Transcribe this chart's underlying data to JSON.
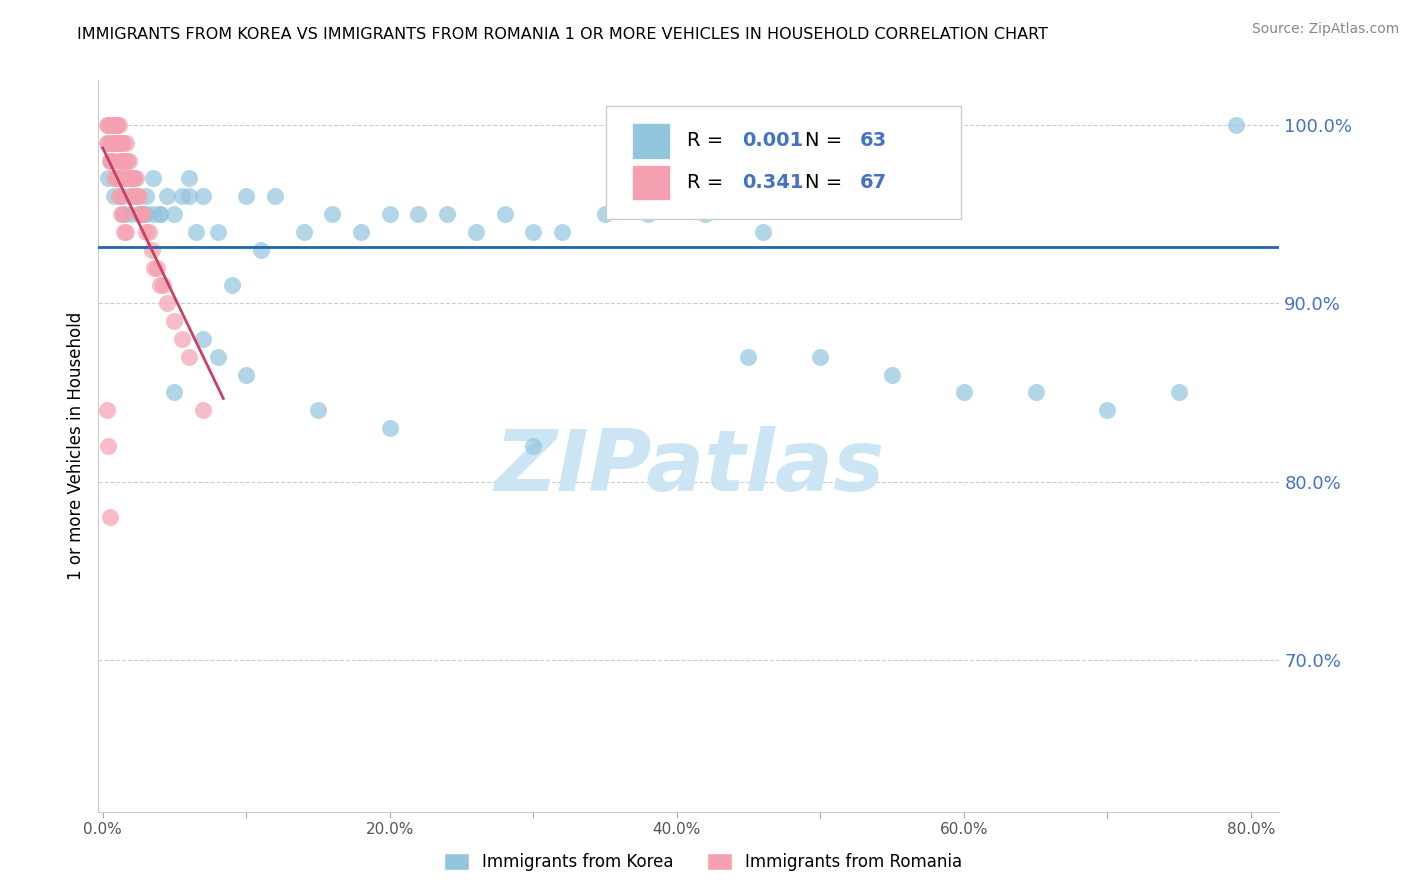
{
  "title": "IMMIGRANTS FROM KOREA VS IMMIGRANTS FROM ROMANIA 1 OR MORE VEHICLES IN HOUSEHOLD CORRELATION CHART",
  "source": "Source: ZipAtlas.com",
  "ylabel": "1 or more Vehicles in Household",
  "xlim": [
    -0.003,
    0.82
  ],
  "ylim": [
    0.615,
    1.025
  ],
  "yticks": [
    0.7,
    0.8,
    0.9,
    1.0
  ],
  "ytick_labels": [
    "70.0%",
    "80.0%",
    "90.0%",
    "100.0%"
  ],
  "xticks": [
    0.0,
    0.1,
    0.2,
    0.3,
    0.4,
    0.5,
    0.6,
    0.7,
    0.8
  ],
  "xtick_labels": [
    "0.0%",
    "",
    "20.0%",
    "",
    "40.0%",
    "",
    "60.0%",
    "",
    "80.0%"
  ],
  "korea_R": 0.001,
  "korea_N": 63,
  "romania_R": 0.341,
  "romania_N": 67,
  "korea_color": "#92c5de",
  "romania_color": "#f4a0b0",
  "korea_line_color": "#2166ac",
  "romania_line_color": "#c94060",
  "legend_korea_label": "Immigrants from Korea",
  "legend_romania_label": "Immigrants from Romania",
  "korea_x": [
    0.004,
    0.006,
    0.008,
    0.01,
    0.012,
    0.014,
    0.016,
    0.018,
    0.02,
    0.022,
    0.024,
    0.026,
    0.028,
    0.03,
    0.035,
    0.04,
    0.045,
    0.05,
    0.055,
    0.06,
    0.065,
    0.07,
    0.08,
    0.09,
    0.1,
    0.11,
    0.12,
    0.14,
    0.16,
    0.18,
    0.2,
    0.22,
    0.24,
    0.26,
    0.28,
    0.3,
    0.32,
    0.35,
    0.38,
    0.42,
    0.46,
    0.5,
    0.55,
    0.6,
    0.65,
    0.7,
    0.75,
    0.79,
    0.015,
    0.02,
    0.025,
    0.03,
    0.035,
    0.04,
    0.05,
    0.06,
    0.07,
    0.08,
    0.1,
    0.15,
    0.2,
    0.3,
    0.45
  ],
  "korea_y": [
    0.97,
    0.98,
    0.96,
    0.97,
    0.97,
    0.96,
    0.97,
    0.97,
    0.96,
    0.97,
    0.96,
    0.95,
    0.95,
    0.96,
    0.97,
    0.95,
    0.96,
    0.95,
    0.96,
    0.97,
    0.94,
    0.96,
    0.94,
    0.91,
    0.96,
    0.93,
    0.96,
    0.94,
    0.95,
    0.94,
    0.95,
    0.95,
    0.95,
    0.94,
    0.95,
    0.94,
    0.94,
    0.95,
    0.95,
    0.95,
    0.94,
    0.87,
    0.86,
    0.85,
    0.85,
    0.84,
    0.85,
    1.0,
    0.95,
    0.95,
    0.95,
    0.95,
    0.95,
    0.95,
    0.85,
    0.96,
    0.88,
    0.87,
    0.86,
    0.84,
    0.83,
    0.82,
    0.87
  ],
  "romania_x": [
    0.003,
    0.004,
    0.005,
    0.006,
    0.007,
    0.007,
    0.008,
    0.008,
    0.009,
    0.01,
    0.01,
    0.011,
    0.011,
    0.012,
    0.012,
    0.013,
    0.013,
    0.014,
    0.014,
    0.015,
    0.015,
    0.016,
    0.016,
    0.017,
    0.017,
    0.018,
    0.018,
    0.019,
    0.02,
    0.02,
    0.021,
    0.022,
    0.023,
    0.024,
    0.025,
    0.026,
    0.027,
    0.028,
    0.03,
    0.032,
    0.034,
    0.036,
    0.038,
    0.04,
    0.042,
    0.045,
    0.05,
    0.055,
    0.06,
    0.07,
    0.003,
    0.004,
    0.005,
    0.006,
    0.007,
    0.008,
    0.009,
    0.01,
    0.011,
    0.012,
    0.013,
    0.014,
    0.015,
    0.016,
    0.003,
    0.004,
    0.005
  ],
  "romania_y": [
    1.0,
    1.0,
    1.0,
    0.99,
    1.0,
    0.99,
    1.0,
    0.99,
    1.0,
    0.99,
    1.0,
    0.99,
    1.0,
    0.99,
    0.98,
    0.99,
    0.98,
    0.99,
    0.98,
    0.98,
    0.97,
    0.99,
    0.97,
    0.98,
    0.97,
    0.97,
    0.98,
    0.97,
    0.96,
    0.97,
    0.97,
    0.96,
    0.97,
    0.96,
    0.96,
    0.95,
    0.95,
    0.95,
    0.94,
    0.94,
    0.93,
    0.92,
    0.92,
    0.91,
    0.91,
    0.9,
    0.89,
    0.88,
    0.87,
    0.84,
    0.99,
    0.99,
    0.98,
    0.98,
    0.98,
    0.97,
    0.97,
    0.97,
    0.96,
    0.96,
    0.95,
    0.95,
    0.94,
    0.94,
    0.84,
    0.82,
    0.78
  ],
  "watermark": "ZIPatlas",
  "watermark_color": "#cce5f5"
}
